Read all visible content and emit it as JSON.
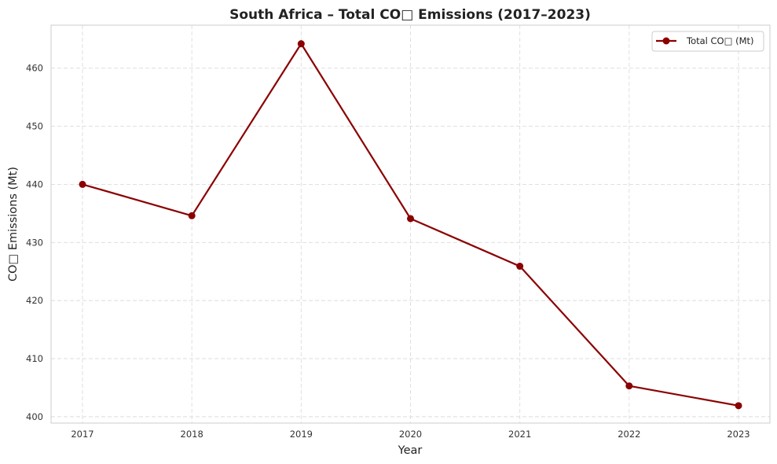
{
  "chart_data": {
    "type": "line",
    "title": "South Africa – Total CO□ Emissions (2017–2023)",
    "xlabel": "Year",
    "ylabel": "CO□ Emissions (Mt)",
    "x": [
      2017,
      2018,
      2019,
      2020,
      2021,
      2022,
      2023
    ],
    "series": [
      {
        "name": "Total CO□ (Mt)",
        "values": [
          440.0,
          434.6,
          464.2,
          434.1,
          425.9,
          405.3,
          401.9
        ],
        "color": "#8b0000",
        "marker": "circle"
      }
    ],
    "ylim": [
      398.9,
      467.4
    ],
    "yticks": [
      400,
      410,
      420,
      430,
      440,
      450,
      460
    ],
    "grid": true,
    "legend_position": "top-right"
  }
}
